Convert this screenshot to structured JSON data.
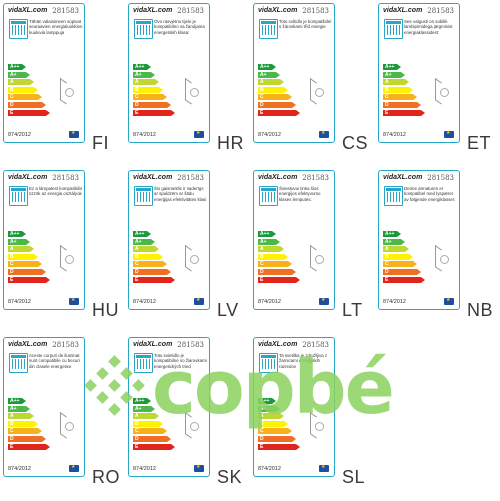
{
  "colors": {
    "frame": "#27a6c9",
    "bar_a_plus_plus": "#1a9a3a",
    "bar_a_plus": "#4cb847",
    "bar_a": "#bfd733",
    "bar_b": "#fff200",
    "bar_c": "#f7b21b",
    "bar_d": "#ef6f23",
    "bar_e": "#e1251b",
    "watermark": "#8bd25f"
  },
  "brand": "vidaXL.com",
  "sku": "281583",
  "regulation": "874/2012",
  "bar_labels": [
    "A++",
    "A+",
    "A",
    "B",
    "C",
    "D",
    "E"
  ],
  "cells": [
    {
      "lang": "FI",
      "desc": "Tähän valaisimeen sopivat seuraavien energialuokkien kuuluvia lamppuja"
    },
    {
      "lang": "HR",
      "desc": "Ovo rasvjetno tijelo je kompatibilno sa žaruljama energetskih klasa:"
    },
    {
      "lang": "CS",
      "desc": "Toto svítidlo je kompatibilní s žárovkami tříd energie"
    },
    {
      "lang": "ET",
      "desc": "See valgusti on sobilik lambipirnidega järgmisist energiaklassidest:"
    },
    {
      "lang": "HU",
      "desc": "Ez a lámpatest kompatibilis üzzök az energia osztályok"
    },
    {
      "lang": "LV",
      "desc": "Šis gaismeklis ir saderīgs ar spuldzēm ar šādu enerģijas efektivitātes klasi"
    },
    {
      "lang": "LT",
      "desc": "Šviestuvui tinka šios energijos efektyvumo klasės lemputės:"
    },
    {
      "lang": "NB",
      "desc": "Denne armaturen er kompatibel med lyspærer av følgende energiklasser:"
    },
    {
      "lang": "RO",
      "desc": "Aceste corpuri de iluminat sunt compatibile cu becuri din clasele energetice"
    },
    {
      "lang": "SK",
      "desc": "Toto svietidlo je kompatibilné so žiarovkami energetických tried"
    },
    {
      "lang": "SL",
      "desc": "Ta svetilka je združljiva z žarnicami energijskih razredov"
    }
  ],
  "watermark": "copbé"
}
